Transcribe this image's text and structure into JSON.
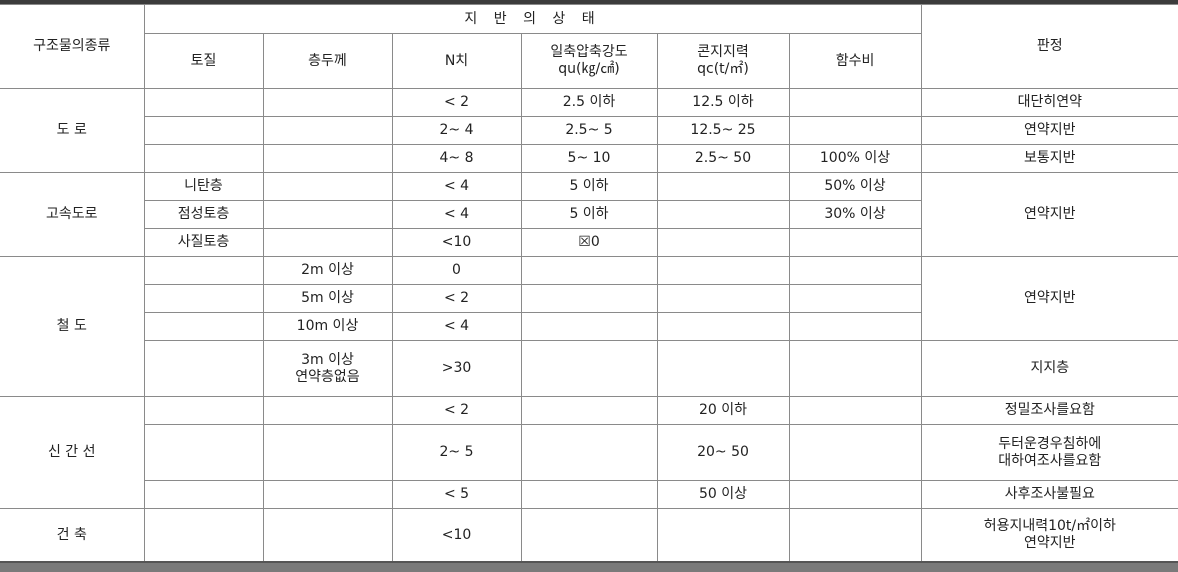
{
  "header": {
    "structure_type": "구조물의종류",
    "ground_state": "지 반 의 상 태",
    "judgment": "판정",
    "columns": [
      "토질",
      "층두께",
      "N치",
      "일축압축강도\nqu(㎏/㎠)",
      "콘지지력\nqc(t/㎡)",
      "함수비"
    ]
  },
  "groups": [
    {
      "name": "도    로",
      "rows": [
        {
          "soil": "",
          "thickness": "",
          "n": "< 2",
          "qu": "2.5 이하",
          "qc": "12.5 이하",
          "water": "",
          "judgment": "대단히연약"
        },
        {
          "soil": "",
          "thickness": "",
          "n": "2~ 4",
          "qu": "2.5~ 5",
          "qc": "12.5~ 25",
          "water": "",
          "judgment": "연약지반"
        },
        {
          "soil": "",
          "thickness": "",
          "n": "4~ 8",
          "qu": "5~ 10",
          "qc": "2.5~ 50",
          "water": "100% 이상",
          "judgment": "보통지반"
        }
      ]
    },
    {
      "name": "고속도로",
      "rows": [
        {
          "soil": "니탄층",
          "thickness": "",
          "n": "< 4",
          "qu": "5 이하",
          "qc": "",
          "water": "50% 이상"
        },
        {
          "soil": "점성토층",
          "thickness": "",
          "n": "< 4",
          "qu": "5 이하",
          "qc": "",
          "water": "30% 이상"
        },
        {
          "soil": "사질토층",
          "thickness": "",
          "n": "<10",
          "qu": "☒0",
          "qc": "",
          "water": ""
        }
      ],
      "judgment": "연약지반"
    },
    {
      "name": "철    도",
      "rows": [
        {
          "soil": "",
          "thickness": "2m 이상",
          "n": "0",
          "qu": "",
          "qc": "",
          "water": ""
        },
        {
          "soil": "",
          "thickness": "5m 이상",
          "n": "< 2",
          "qu": "",
          "qc": "",
          "water": ""
        },
        {
          "soil": "",
          "thickness": "10m 이상",
          "n": "< 4",
          "qu": "",
          "qc": "",
          "water": ""
        },
        {
          "soil": "",
          "thickness": "3m 이상\n연약층없음",
          "n": ">30",
          "qu": "",
          "qc": "",
          "water": ""
        }
      ],
      "judgment_top": "연약지반",
      "judgment_bottom": "지지층"
    },
    {
      "name": "신 간 선",
      "rows": [
        {
          "soil": "",
          "thickness": "",
          "n": "< 2",
          "qu": "",
          "qc": "20 이하",
          "water": "",
          "judgment": "정밀조사를요함"
        },
        {
          "soil": "",
          "thickness": "",
          "n": "2~ 5",
          "qu": "",
          "qc": "20~ 50",
          "water": "",
          "judgment": "두터운경우침하에\n대하여조사를요함"
        },
        {
          "soil": "",
          "thickness": "",
          "n": "< 5",
          "qu": "",
          "qc": "50 이상",
          "water": "",
          "judgment": "사후조사불필요"
        }
      ]
    },
    {
      "name": "건    축",
      "rows": [
        {
          "soil": "",
          "thickness": "",
          "n": "<10",
          "qu": "",
          "qc": "",
          "water": "",
          "judgment": "허용지내력10t/㎡이하\n연약지반"
        }
      ]
    }
  ]
}
